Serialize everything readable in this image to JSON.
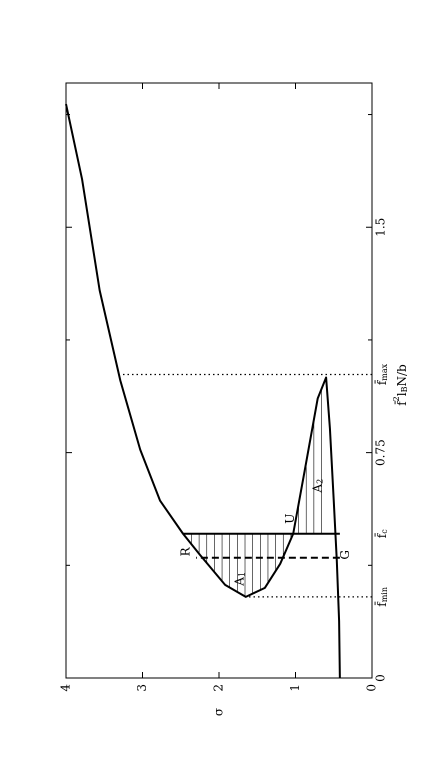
{
  "chart_data": {
    "type": "line",
    "y_label": "σ",
    "x_label": {
      "base": "f̄",
      "sup": "2",
      "mid": "l",
      "sub": "B",
      "tail": "N/b"
    },
    "xlim": [
      0,
      1.98
    ],
    "xticks": [
      0,
      0.75,
      1.5
    ],
    "xminorticks": [
      0.375,
      1.125,
      1.875
    ],
    "ylim": [
      0,
      4
    ],
    "yticks": [
      0,
      1,
      2,
      3,
      4
    ],
    "series": [
      {
        "color": "#000000",
        "x": [
          0,
          0.19,
          0.39,
          0.59,
          0.83,
          1.0,
          0.93,
          0.69,
          0.48,
          0.38,
          0.3,
          0.27,
          0.31,
          0.41,
          0.48,
          0.59,
          0.76,
          0.99,
          1.29,
          1.66,
          1.91
        ],
        "values": [
          0.42,
          0.43,
          0.46,
          0.5,
          0.55,
          0.6,
          0.71,
          0.88,
          1.03,
          1.2,
          1.4,
          1.65,
          1.92,
          2.25,
          2.47,
          2.77,
          3.03,
          3.29,
          3.56,
          3.79,
          4.0
        ]
      }
    ],
    "vertical_lines": [
      {
        "x": 0.48,
        "values": [
          0.42,
          2.47
        ],
        "style": "solid"
      },
      {
        "x": 0.4,
        "values": [
          0.42,
          2.3
        ],
        "style": "dashed"
      }
    ],
    "markers": [
      {
        "label": "f̄",
        "sub": "min",
        "x": 0.27,
        "values": [
          0,
          1.65
        ],
        "style": "dotted"
      },
      {
        "label": "f̄",
        "sub": "c",
        "x": 0.48
      },
      {
        "label": "f̄",
        "sub": "max",
        "x": 1.01,
        "values": [
          0,
          3.29
        ],
        "style": "dotted"
      }
    ],
    "annotations": [
      {
        "text": "R",
        "x": 0.42,
        "y": 2.44
      },
      {
        "text": "G",
        "x": 0.41,
        "y": 0.35
      },
      {
        "text": "U",
        "x": 0.53,
        "y": 1.07
      },
      {
        "text": "A",
        "sub": "1",
        "x": 0.33,
        "y": 1.73
      },
      {
        "text": "A",
        "sub": "2",
        "x": 0.64,
        "y": 0.71
      }
    ]
  }
}
